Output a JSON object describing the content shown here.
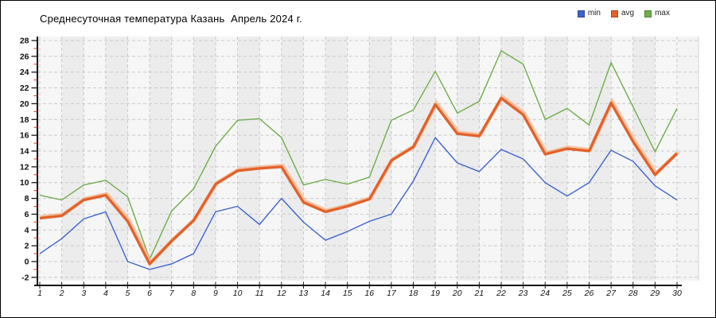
{
  "title": "Среднесуточная температура Казань  Апрель 2024 г.",
  "legend": {
    "items": [
      {
        "label": "min",
        "color": "#3e63cc"
      },
      {
        "label": "avg",
        "color": "#e2622b"
      },
      {
        "label": "max",
        "color": "#70ad4b"
      }
    ]
  },
  "chart_data": {
    "type": "line",
    "title": "Среднесуточная температура Казань  Апрель 2024 г.",
    "x": [
      1,
      2,
      3,
      4,
      5,
      6,
      7,
      8,
      9,
      10,
      11,
      12,
      13,
      14,
      15,
      16,
      17,
      18,
      19,
      20,
      21,
      22,
      23,
      24,
      25,
      26,
      27,
      28,
      29,
      30
    ],
    "series": [
      {
        "name": "min",
        "color": "#3e63cc",
        "width": 1.4,
        "values": [
          1.0,
          2.9,
          5.4,
          6.3,
          0.0,
          -1.0,
          -0.3,
          1.0,
          6.3,
          7.0,
          4.7,
          8.0,
          5.0,
          2.7,
          3.8,
          5.1,
          6.0,
          10.2,
          15.7,
          12.5,
          11.4,
          14.2,
          13.0,
          10.0,
          8.3,
          10.0,
          14.1,
          12.7,
          9.6,
          7.8
        ]
      },
      {
        "name": "avg",
        "color": "#e2622b",
        "width": 3.4,
        "values": [
          5.5,
          5.8,
          7.8,
          8.4,
          5.1,
          -0.3,
          2.6,
          5.2,
          9.8,
          11.5,
          11.8,
          12.0,
          7.5,
          6.3,
          7.0,
          7.9,
          12.8,
          14.5,
          19.9,
          16.2,
          15.9,
          20.7,
          18.6,
          13.6,
          14.3,
          14.0,
          20.1,
          15.2,
          11.0,
          13.7
        ]
      },
      {
        "name": "max",
        "color": "#70ad4b",
        "width": 1.4,
        "values": [
          8.4,
          7.8,
          9.7,
          10.3,
          8.2,
          0.3,
          6.4,
          9.2,
          14.6,
          17.9,
          18.1,
          15.7,
          9.7,
          10.4,
          9.8,
          10.7,
          17.9,
          19.2,
          24.1,
          18.8,
          20.3,
          26.7,
          25.0,
          18.0,
          19.4,
          17.3,
          25.2,
          19.6,
          13.9,
          19.4
        ]
      }
    ],
    "ylim": [
      -2,
      28
    ],
    "ytick_step": 2,
    "grid": true,
    "legend_position": "top-right",
    "style": {
      "plot_bg": "#f4f4f4",
      "stripe_a": "#f6f6f6",
      "stripe_b": "#ececec",
      "grid_color": "#c9c9c9",
      "axis_color": "#161616",
      "minor_tick_color": "#cf2d23",
      "halo_color": "#f5b68c",
      "label_color": "#111111"
    }
  }
}
